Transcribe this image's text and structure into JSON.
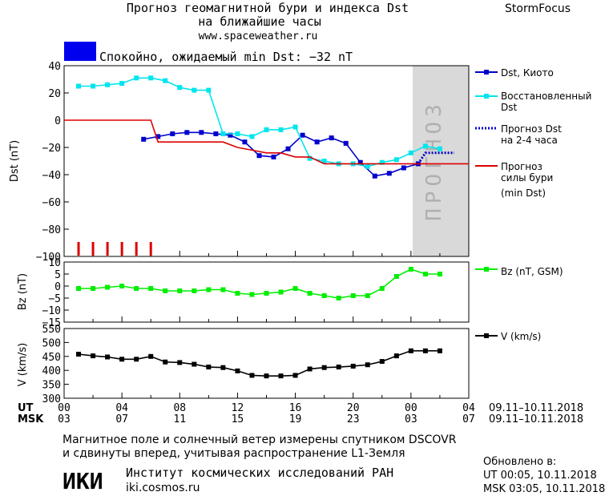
{
  "header": {
    "title_line1": "Прогноз геомагнитной бури и индекса Dst",
    "title_line2": "на ближайшие часы",
    "site": "www.spaceweather.ru",
    "brand": "StormFocus"
  },
  "status": {
    "text": "Спокойно, ожидаемый min Dst: −32 nT",
    "color": "#0000ee"
  },
  "forecast_band_label": "ПРОГНОЗ",
  "footer": {
    "note_line1": "Магнитное поле и солнечный ветер измерены спутником DSCOVR",
    "note_line2": "и сдвинуты вперед, учитывая распространение L1-Земля",
    "institute_logo": "ИКИ",
    "institute_name": "Институт космических исследований РАН",
    "institute_site": "iki.cosmos.ru",
    "updated_title": "Обновлено в:",
    "updated_ut": "UT  00:05, 10.11.2018",
    "updated_msk": "MSK 03:05, 10.11.2018"
  },
  "time_axis": {
    "ut_label": "UT",
    "msk_label": "MSK",
    "ut_ticks": [
      "00",
      "04",
      "08",
      "12",
      "16",
      "20",
      "00",
      "04"
    ],
    "msk_ticks": [
      "03",
      "07",
      "11",
      "15",
      "19",
      "23",
      "03",
      "07"
    ],
    "ut_range": "09.11–10.11.2018",
    "msk_range": "09.11–10.11.2018"
  },
  "chart_data": [
    {
      "type": "line",
      "ylabel": "Dst (nT)",
      "ylim": [
        -100,
        40
      ],
      "yticks": [
        40,
        20,
        0,
        -20,
        -40,
        -60,
        -80,
        -100
      ],
      "xlim_hours": [
        0,
        28
      ],
      "forecast_region_hours": [
        24,
        28
      ],
      "series": [
        {
          "name": "Dst, Киото",
          "color": "#0000cc",
          "marker": "square",
          "x": [
            5.5,
            6.5,
            7.5,
            8.5,
            9.5,
            10.5,
            11.5,
            12.5,
            13.5,
            14.5,
            15.5,
            16.5,
            17.5,
            18.5,
            19.5,
            20.5,
            21.5,
            22.5,
            23.5,
            24.5
          ],
          "y": [
            -14,
            -12,
            -10,
            -9,
            -9,
            -10,
            -11,
            -16,
            -26,
            -27,
            -21,
            -11,
            -16,
            -13,
            -17,
            -31,
            -41,
            -39,
            -35,
            -32
          ]
        },
        {
          "name": "Восстановленный Dst",
          "color": "#00e5ee",
          "marker": "square",
          "x": [
            1,
            2,
            3,
            4,
            5,
            6,
            7,
            8,
            9,
            10,
            11,
            12,
            13,
            14,
            15,
            16,
            17,
            18,
            19,
            20,
            21,
            22,
            23,
            24,
            25,
            26
          ],
          "y": [
            25,
            25,
            26,
            27,
            31,
            31,
            29,
            24,
            22,
            22,
            -10,
            -10,
            -12,
            -7,
            -7,
            -5,
            -28,
            -30,
            -32,
            -32,
            -34,
            -31,
            -29,
            -24,
            -19,
            -21
          ]
        },
        {
          "name": "Прогноз Dst на 2-4 часа",
          "color": "#0000cc",
          "dash": true,
          "x": [
            24.5,
            25,
            26,
            27
          ],
          "y": [
            -32,
            -24,
            -24,
            -24
          ]
        },
        {
          "name": "Прогноз силы бури (min Dst)",
          "color": "#dd0000",
          "step": true,
          "x": [
            0,
            6,
            6.5,
            11,
            12,
            13,
            14,
            15,
            16,
            17,
            18,
            28
          ],
          "y": [
            0,
            0,
            -16,
            -16,
            -20,
            -22,
            -24,
            -24,
            -27,
            -27,
            -32,
            -32
          ]
        }
      ],
      "storm_marks_hours": [
        1,
        2,
        3,
        4,
        5,
        6
      ]
    },
    {
      "type": "line",
      "ylabel": "Bz (nT)",
      "ylim": [
        -15,
        10
      ],
      "yticks": [
        10,
        5,
        0,
        -5,
        -10,
        -15
      ],
      "series": [
        {
          "name": "Bz (nT, GSM)",
          "color": "#00ee00",
          "marker": "square",
          "x": [
            1,
            2,
            3,
            4,
            5,
            6,
            7,
            8,
            9,
            10,
            11,
            12,
            13,
            14,
            15,
            16,
            17,
            18,
            19,
            20,
            21,
            22,
            23,
            24,
            25,
            26
          ],
          "y": [
            -1,
            -1,
            -0.5,
            0,
            -1,
            -1,
            -2,
            -2,
            -2,
            -1.5,
            -1.5,
            -3,
            -3.5,
            -3,
            -2.5,
            -1,
            -3,
            -4,
            -5,
            -4,
            -4,
            -1,
            4,
            7,
            5,
            5
          ]
        }
      ]
    },
    {
      "type": "line",
      "ylabel": "V (km/s)",
      "ylim": [
        300,
        550
      ],
      "yticks": [
        550,
        500,
        450,
        400,
        350,
        300
      ],
      "series": [
        {
          "name": "V (km/s)",
          "color": "#000000",
          "marker": "square",
          "x": [
            1,
            2,
            3,
            4,
            5,
            6,
            7,
            8,
            9,
            10,
            11,
            12,
            13,
            14,
            15,
            16,
            17,
            18,
            19,
            20,
            21,
            22,
            23,
            24,
            25,
            26
          ],
          "y": [
            458,
            452,
            448,
            440,
            440,
            450,
            430,
            428,
            422,
            412,
            410,
            398,
            382,
            380,
            380,
            382,
            405,
            410,
            412,
            415,
            420,
            432,
            452,
            470,
            470,
            470
          ]
        }
      ]
    }
  ]
}
